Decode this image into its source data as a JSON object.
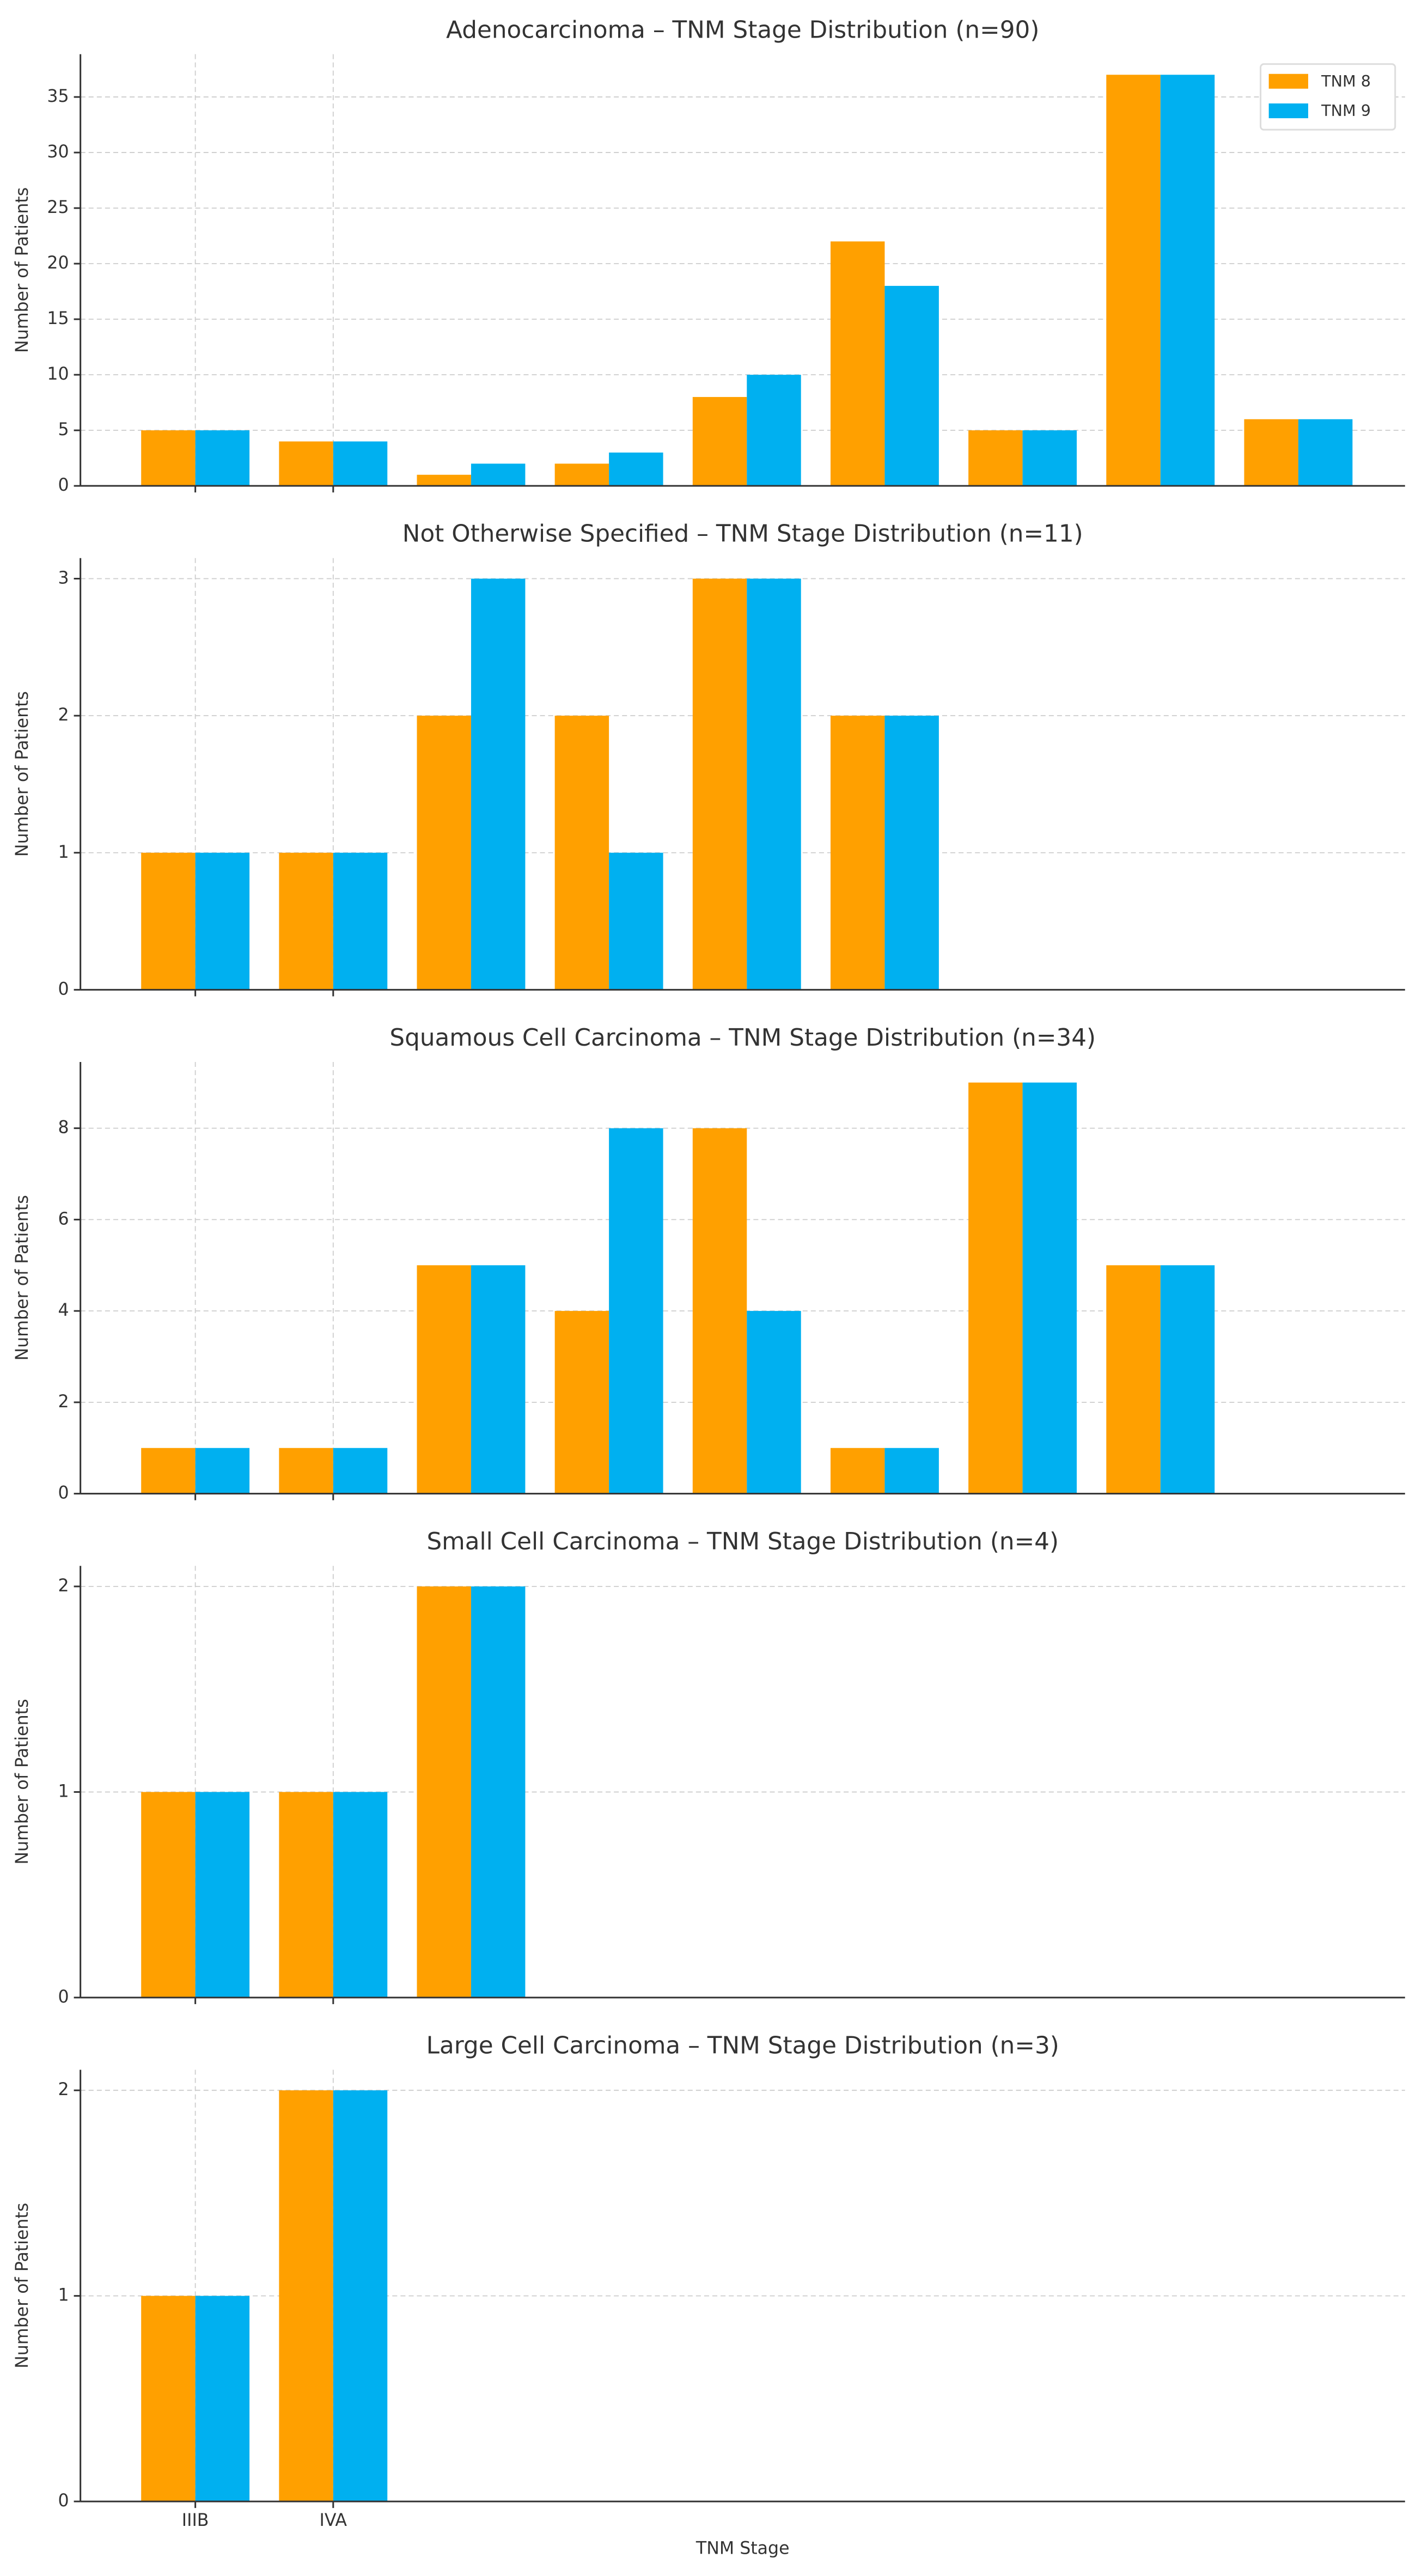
{
  "chart_data": [
    {
      "type": "bar",
      "title": "Adenocarcinoma – TNM Stage Distribution (n=90)",
      "y_label": "Number of Patients",
      "categories": [
        null,
        null,
        null,
        null,
        null,
        null,
        null,
        null,
        null
      ],
      "series": [
        {
          "name": "TNM 8",
          "color": "#ffa000",
          "values": [
            5,
            4,
            1,
            2,
            8,
            22,
            5,
            37,
            6
          ]
        },
        {
          "name": "TNM 9",
          "color": "#00b0f0",
          "values": [
            5,
            4,
            2,
            3,
            10,
            18,
            5,
            37,
            6
          ]
        }
      ],
      "ylim": [
        0,
        38.85
      ],
      "yticks": [
        0,
        5,
        10,
        15,
        20,
        25,
        30,
        35
      ],
      "grid": true,
      "legend": "upper right"
    },
    {
      "type": "bar",
      "title": "Not Otherwise Specified – TNM Stage Distribution (n=11)",
      "y_label": "Number of Patients",
      "categories": [
        null,
        null,
        null,
        null,
        null,
        null
      ],
      "series": [
        {
          "color": "#ffa000",
          "values": [
            1,
            1,
            2,
            2,
            3,
            2
          ]
        },
        {
          "color": "#00b0f0",
          "values": [
            1,
            1,
            3,
            1,
            3,
            2
          ]
        }
      ],
      "ylim": [
        0,
        3.15
      ],
      "yticks": [
        0,
        1,
        2,
        3
      ],
      "grid": true
    },
    {
      "type": "bar",
      "title": "Squamous Cell Carcinoma – TNM Stage Distribution (n=34)",
      "y_label": "Number of Patients",
      "categories": [
        null,
        null,
        null,
        null,
        null,
        null,
        null,
        null
      ],
      "series": [
        {
          "color": "#ffa000",
          "values": [
            1,
            1,
            5,
            4,
            8,
            1,
            9,
            5
          ]
        },
        {
          "color": "#00b0f0",
          "values": [
            1,
            1,
            5,
            8,
            4,
            1,
            9,
            5
          ]
        }
      ],
      "ylim": [
        0,
        9.45
      ],
      "yticks": [
        0,
        2,
        4,
        6,
        8
      ],
      "grid": true
    },
    {
      "type": "bar",
      "title": "Small Cell Carcinoma – TNM Stage Distribution (n=4)",
      "y_label": "Number of Patients",
      "categories": [
        null,
        null,
        null
      ],
      "series": [
        {
          "color": "#ffa000",
          "values": [
            1,
            1,
            2
          ]
        },
        {
          "color": "#00b0f0",
          "values": [
            1,
            1,
            2
          ]
        }
      ],
      "ylim": [
        0,
        2.1
      ],
      "yticks": [
        0,
        1,
        2
      ],
      "grid": true
    },
    {
      "type": "bar",
      "title": "Large Cell Carcinoma – TNM Stage Distribution (n=3)",
      "y_label": "Number of Patients",
      "x_label": "TNM Stage",
      "categories": [
        "IIIB",
        "IVA"
      ],
      "series": [
        {
          "color": "#ffa000",
          "values": [
            1,
            2
          ]
        },
        {
          "color": "#00b0f0",
          "values": [
            1,
            2
          ]
        }
      ],
      "ylim": [
        0,
        2.1
      ],
      "yticks": [
        0,
        1,
        2
      ],
      "grid": true
    }
  ]
}
